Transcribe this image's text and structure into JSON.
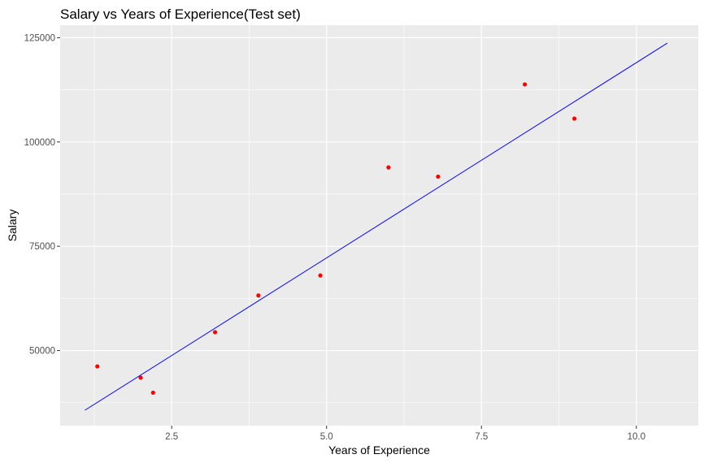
{
  "chart_data": {
    "type": "scatter",
    "title": "Salary vs Years of Experience(Test set)",
    "xlabel": "Years of Experience",
    "ylabel": "Salary",
    "xlim": [
      0.7,
      11.0
    ],
    "ylim": [
      32000,
      128000
    ],
    "x_ticks": [
      2.5,
      5.0,
      7.5,
      10.0
    ],
    "x_tick_labels": [
      "2.5",
      "5.0",
      "7.5",
      "10.0"
    ],
    "x_minor_ticks": [
      1.25,
      3.75,
      6.25,
      8.75
    ],
    "y_ticks": [
      50000,
      75000,
      100000,
      125000
    ],
    "y_tick_labels": [
      "50000",
      "75000",
      "100000",
      "125000"
    ],
    "y_minor_ticks": [
      37500,
      62500,
      87500,
      112500
    ],
    "grid": true,
    "legend": "none",
    "colors": {
      "panel": "#ebebeb",
      "grid": "#ffffff",
      "points": "#ff0000",
      "line": "#0000ff"
    },
    "series": [
      {
        "type": "scatter",
        "x": [
          1.3,
          2.0,
          2.2,
          3.2,
          3.9,
          4.9,
          6.0,
          6.8,
          8.2,
          9.0
        ],
        "y": [
          46200,
          43500,
          39900,
          54400,
          63200,
          68000,
          93900,
          91700,
          113800,
          105600
        ]
      },
      {
        "type": "line",
        "x": [
          1.1,
          10.5
        ],
        "y": [
          35700,
          123700
        ]
      }
    ]
  }
}
